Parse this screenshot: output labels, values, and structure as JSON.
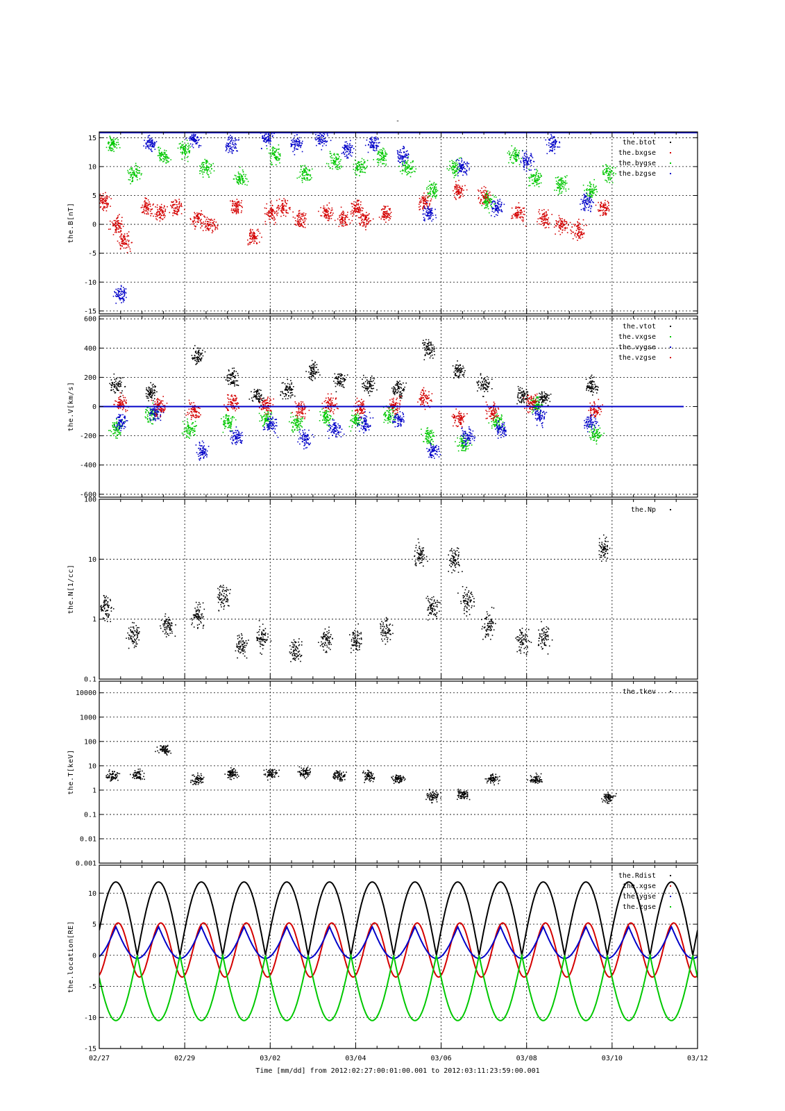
{
  "figure": {
    "top_mark": "-",
    "time_caption": "Time [mm/dd]  from 2012:02:27:00:01:00.001  to  2012:03:11:23:59:00.001"
  },
  "colors": {
    "black": "#000000",
    "red": "#d40000",
    "green": "#00c800",
    "blue": "#0000c8"
  },
  "chart_data": [
    {
      "id": "B",
      "type": "scatter",
      "ylabel": "the.B[nT]",
      "ylim": [
        -15.5,
        16
      ],
      "scale": "linear",
      "yticks": [
        {
          "v": 15,
          "label": "15"
        },
        {
          "v": 10,
          "label": "10"
        },
        {
          "v": 5,
          "label": "5"
        },
        {
          "v": 0,
          "label": "0"
        },
        {
          "v": -5,
          "label": "-5"
        },
        {
          "v": -10,
          "label": "-10"
        },
        {
          "v": -15,
          "label": "-15"
        }
      ],
      "series": [
        {
          "name": "the.btot",
          "color": "#000000",
          "points": []
        },
        {
          "name": "the.bxgse",
          "color": "#d40000",
          "points": [
            [
              0.1,
              4
            ],
            [
              0.4,
              0
            ],
            [
              0.6,
              -3
            ],
            [
              1.1,
              3
            ],
            [
              1.4,
              2
            ],
            [
              1.8,
              3
            ],
            [
              2.3,
              1
            ],
            [
              2.6,
              0
            ],
            [
              3.2,
              3
            ],
            [
              3.6,
              -2
            ],
            [
              4.0,
              2
            ],
            [
              4.3,
              3
            ],
            [
              4.7,
              1
            ],
            [
              5.3,
              2
            ],
            [
              5.7,
              1
            ],
            [
              6.0,
              3
            ],
            [
              6.2,
              1
            ],
            [
              6.7,
              2
            ],
            [
              7.6,
              4
            ],
            [
              8.4,
              6
            ],
            [
              9.0,
              5
            ],
            [
              9.8,
              2
            ],
            [
              10.4,
              1
            ],
            [
              10.8,
              0
            ],
            [
              11.2,
              -1
            ],
            [
              11.8,
              3
            ]
          ]
        },
        {
          "name": "the.bygse",
          "color": "#00c800",
          "points": [
            [
              0.3,
              14
            ],
            [
              0.8,
              9
            ],
            [
              1.5,
              12
            ],
            [
              2.0,
              13
            ],
            [
              2.5,
              10
            ],
            [
              3.3,
              8
            ],
            [
              4.1,
              12
            ],
            [
              4.8,
              9
            ],
            [
              5.5,
              11
            ],
            [
              6.1,
              10
            ],
            [
              6.6,
              12
            ],
            [
              7.2,
              10
            ],
            [
              7.8,
              6
            ],
            [
              8.3,
              10
            ],
            [
              9.1,
              4
            ],
            [
              9.7,
              12
            ],
            [
              10.2,
              8
            ],
            [
              10.8,
              7
            ],
            [
              11.5,
              6
            ],
            [
              11.9,
              9
            ]
          ]
        },
        {
          "name": "the.bzgse",
          "color": "#0000c8",
          "points": [
            [
              0.5,
              -12
            ],
            [
              1.2,
              14
            ],
            [
              2.2,
              15
            ],
            [
              3.1,
              14
            ],
            [
              3.9,
              15
            ],
            [
              4.6,
              14
            ],
            [
              5.2,
              15
            ],
            [
              5.8,
              13
            ],
            [
              6.4,
              14
            ],
            [
              7.1,
              12
            ],
            [
              7.7,
              2
            ],
            [
              8.5,
              10
            ],
            [
              9.3,
              3
            ],
            [
              10.0,
              11
            ],
            [
              10.6,
              14
            ],
            [
              11.4,
              4
            ]
          ]
        }
      ]
    },
    {
      "id": "V",
      "type": "scatter",
      "ylabel": "the.V[km/s]",
      "ylim": [
        -620,
        620
      ],
      "scale": "linear",
      "yticks": [
        {
          "v": 600,
          "label": "600"
        },
        {
          "v": 400,
          "label": "400"
        },
        {
          "v": 200,
          "label": "200"
        },
        {
          "v": 0,
          "label": "0"
        },
        {
          "v": -200,
          "label": "-200"
        },
        {
          "v": -400,
          "label": "-400"
        },
        {
          "v": -600,
          "label": "-600"
        }
      ],
      "series": [
        {
          "name": "the.vtot",
          "color": "#000000",
          "points": [
            [
              0.4,
              150
            ],
            [
              1.2,
              100
            ],
            [
              2.3,
              350
            ],
            [
              3.1,
              200
            ],
            [
              3.7,
              80
            ],
            [
              4.4,
              120
            ],
            [
              5.0,
              250
            ],
            [
              5.6,
              180
            ],
            [
              6.3,
              150
            ],
            [
              7.0,
              120
            ],
            [
              7.7,
              400
            ],
            [
              8.4,
              250
            ],
            [
              9.0,
              150
            ],
            [
              9.9,
              80
            ],
            [
              10.4,
              60
            ],
            [
              11.5,
              150
            ]
          ]
        },
        {
          "name": "the.vxgse",
          "color": "#00c800",
          "points": [
            [
              0.4,
              -150
            ],
            [
              1.2,
              -50
            ],
            [
              2.1,
              -150
            ],
            [
              3.0,
              -100
            ],
            [
              3.9,
              -80
            ],
            [
              4.6,
              -110
            ],
            [
              5.3,
              -60
            ],
            [
              6.0,
              -90
            ],
            [
              6.8,
              -50
            ],
            [
              7.7,
              -200
            ],
            [
              8.5,
              -250
            ],
            [
              9.3,
              -100
            ],
            [
              10.2,
              20
            ],
            [
              11.6,
              -180
            ]
          ]
        },
        {
          "name": "the.vygse",
          "color": "#0000c8",
          "points": [
            [
              0.5,
              -100
            ],
            [
              1.3,
              -40
            ],
            [
              2.4,
              -300
            ],
            [
              3.2,
              -200
            ],
            [
              4.0,
              -120
            ],
            [
              4.8,
              -220
            ],
            [
              5.5,
              -150
            ],
            [
              6.2,
              -110
            ],
            [
              7.0,
              -80
            ],
            [
              7.8,
              -300
            ],
            [
              8.6,
              -200
            ],
            [
              9.4,
              -150
            ],
            [
              10.3,
              -60
            ],
            [
              11.5,
              -100
            ]
          ]
        },
        {
          "name": "the.vzgse",
          "color": "#d40000",
          "points": [
            [
              0.5,
              20
            ],
            [
              1.4,
              0
            ],
            [
              2.2,
              -20
            ],
            [
              3.1,
              30
            ],
            [
              3.9,
              10
            ],
            [
              4.7,
              -10
            ],
            [
              5.4,
              20
            ],
            [
              6.1,
              0
            ],
            [
              6.9,
              10
            ],
            [
              7.6,
              60
            ],
            [
              8.4,
              -80
            ],
            [
              9.2,
              -30
            ],
            [
              10.1,
              30
            ],
            [
              11.6,
              -20
            ]
          ]
        }
      ]
    },
    {
      "id": "N",
      "type": "scatter",
      "ylabel": "the.N[1/cc]",
      "ylim": [
        0.1,
        100
      ],
      "scale": "log",
      "yticks": [
        {
          "v": 100,
          "label": "100"
        },
        {
          "v": 10,
          "label": "10"
        },
        {
          "v": 1,
          "label": "1"
        },
        {
          "v": 0.1,
          "label": "0.1"
        }
      ],
      "series": [
        {
          "name": "the.Np",
          "color": "#000000",
          "points": [
            [
              0.15,
              1.6
            ],
            [
              0.8,
              0.55
            ],
            [
              1.6,
              0.8
            ],
            [
              2.3,
              1.2
            ],
            [
              2.9,
              2.5
            ],
            [
              3.3,
              0.35
            ],
            [
              3.8,
              0.5
            ],
            [
              4.6,
              0.3
            ],
            [
              5.3,
              0.45
            ],
            [
              6.0,
              0.45
            ],
            [
              6.7,
              0.65
            ],
            [
              7.5,
              12
            ],
            [
              7.8,
              1.6
            ],
            [
              8.3,
              10
            ],
            [
              8.6,
              2
            ],
            [
              9.1,
              0.8
            ],
            [
              9.9,
              0.45
            ],
            [
              10.4,
              0.5
            ],
            [
              11.8,
              15
            ]
          ]
        }
      ]
    },
    {
      "id": "T",
      "type": "scatter",
      "ylabel": "the.T[keV]",
      "ylim": [
        0.001,
        30000
      ],
      "scale": "log",
      "yticks": [
        {
          "v": 10000,
          "label": "10000"
        },
        {
          "v": 1000,
          "label": "1000"
        },
        {
          "v": 100,
          "label": "100"
        },
        {
          "v": 10,
          "label": "10"
        },
        {
          "v": 1,
          "label": "1"
        },
        {
          "v": 0.1,
          "label": "0.1"
        },
        {
          "v": 0.01,
          "label": "0.01"
        },
        {
          "v": 0.001,
          "label": "0.001"
        }
      ],
      "series": [
        {
          "name": "the.tkev",
          "color": "#000000",
          "points": [
            [
              0.3,
              4
            ],
            [
              0.9,
              4.5
            ],
            [
              1.5,
              50
            ],
            [
              2.3,
              3
            ],
            [
              3.1,
              5
            ],
            [
              4.0,
              5
            ],
            [
              4.8,
              5.5
            ],
            [
              5.6,
              4
            ],
            [
              6.3,
              4
            ],
            [
              7.0,
              3
            ],
            [
              7.8,
              0.6
            ],
            [
              8.5,
              0.7
            ],
            [
              9.2,
              3
            ],
            [
              10.2,
              3
            ],
            [
              11.9,
              0.5
            ]
          ]
        }
      ]
    },
    {
      "id": "location",
      "type": "line",
      "ylabel": "the.location[RE]",
      "ylim": [
        -15,
        14.5
      ],
      "scale": "linear",
      "yticks": [
        {
          "v": 10,
          "label": "10"
        },
        {
          "v": 5,
          "label": "5"
        },
        {
          "v": 0,
          "label": "0"
        },
        {
          "v": -5,
          "label": "-5"
        },
        {
          "v": -10,
          "label": "-10"
        },
        {
          "v": -15,
          "label": "-15"
        }
      ],
      "orbit_period_days": 1.0,
      "series": [
        {
          "name": "the.Rdist",
          "color": "#000000",
          "min": 0,
          "max": 11.8
        },
        {
          "name": "the.xgse",
          "color": "#d40000",
          "min": -3.5,
          "max": 5.2
        },
        {
          "name": "the.ygse",
          "color": "#0000c8",
          "min": -0.5,
          "max": 4.6
        },
        {
          "name": "the.zgse",
          "color": "#00c800",
          "min": -10.5,
          "max": 0
        }
      ]
    }
  ],
  "xaxis": {
    "range_days": [
      0,
      14
    ],
    "ticks": [
      {
        "d": 0,
        "label": "02/27"
      },
      {
        "d": 2,
        "label": "02/29"
      },
      {
        "d": 4,
        "label": "03/02"
      },
      {
        "d": 6,
        "label": "03/04"
      },
      {
        "d": 8,
        "label": "03/06"
      },
      {
        "d": 10,
        "label": "03/08"
      },
      {
        "d": 12,
        "label": "03/10"
      },
      {
        "d": 14,
        "label": "03/12"
      }
    ]
  }
}
